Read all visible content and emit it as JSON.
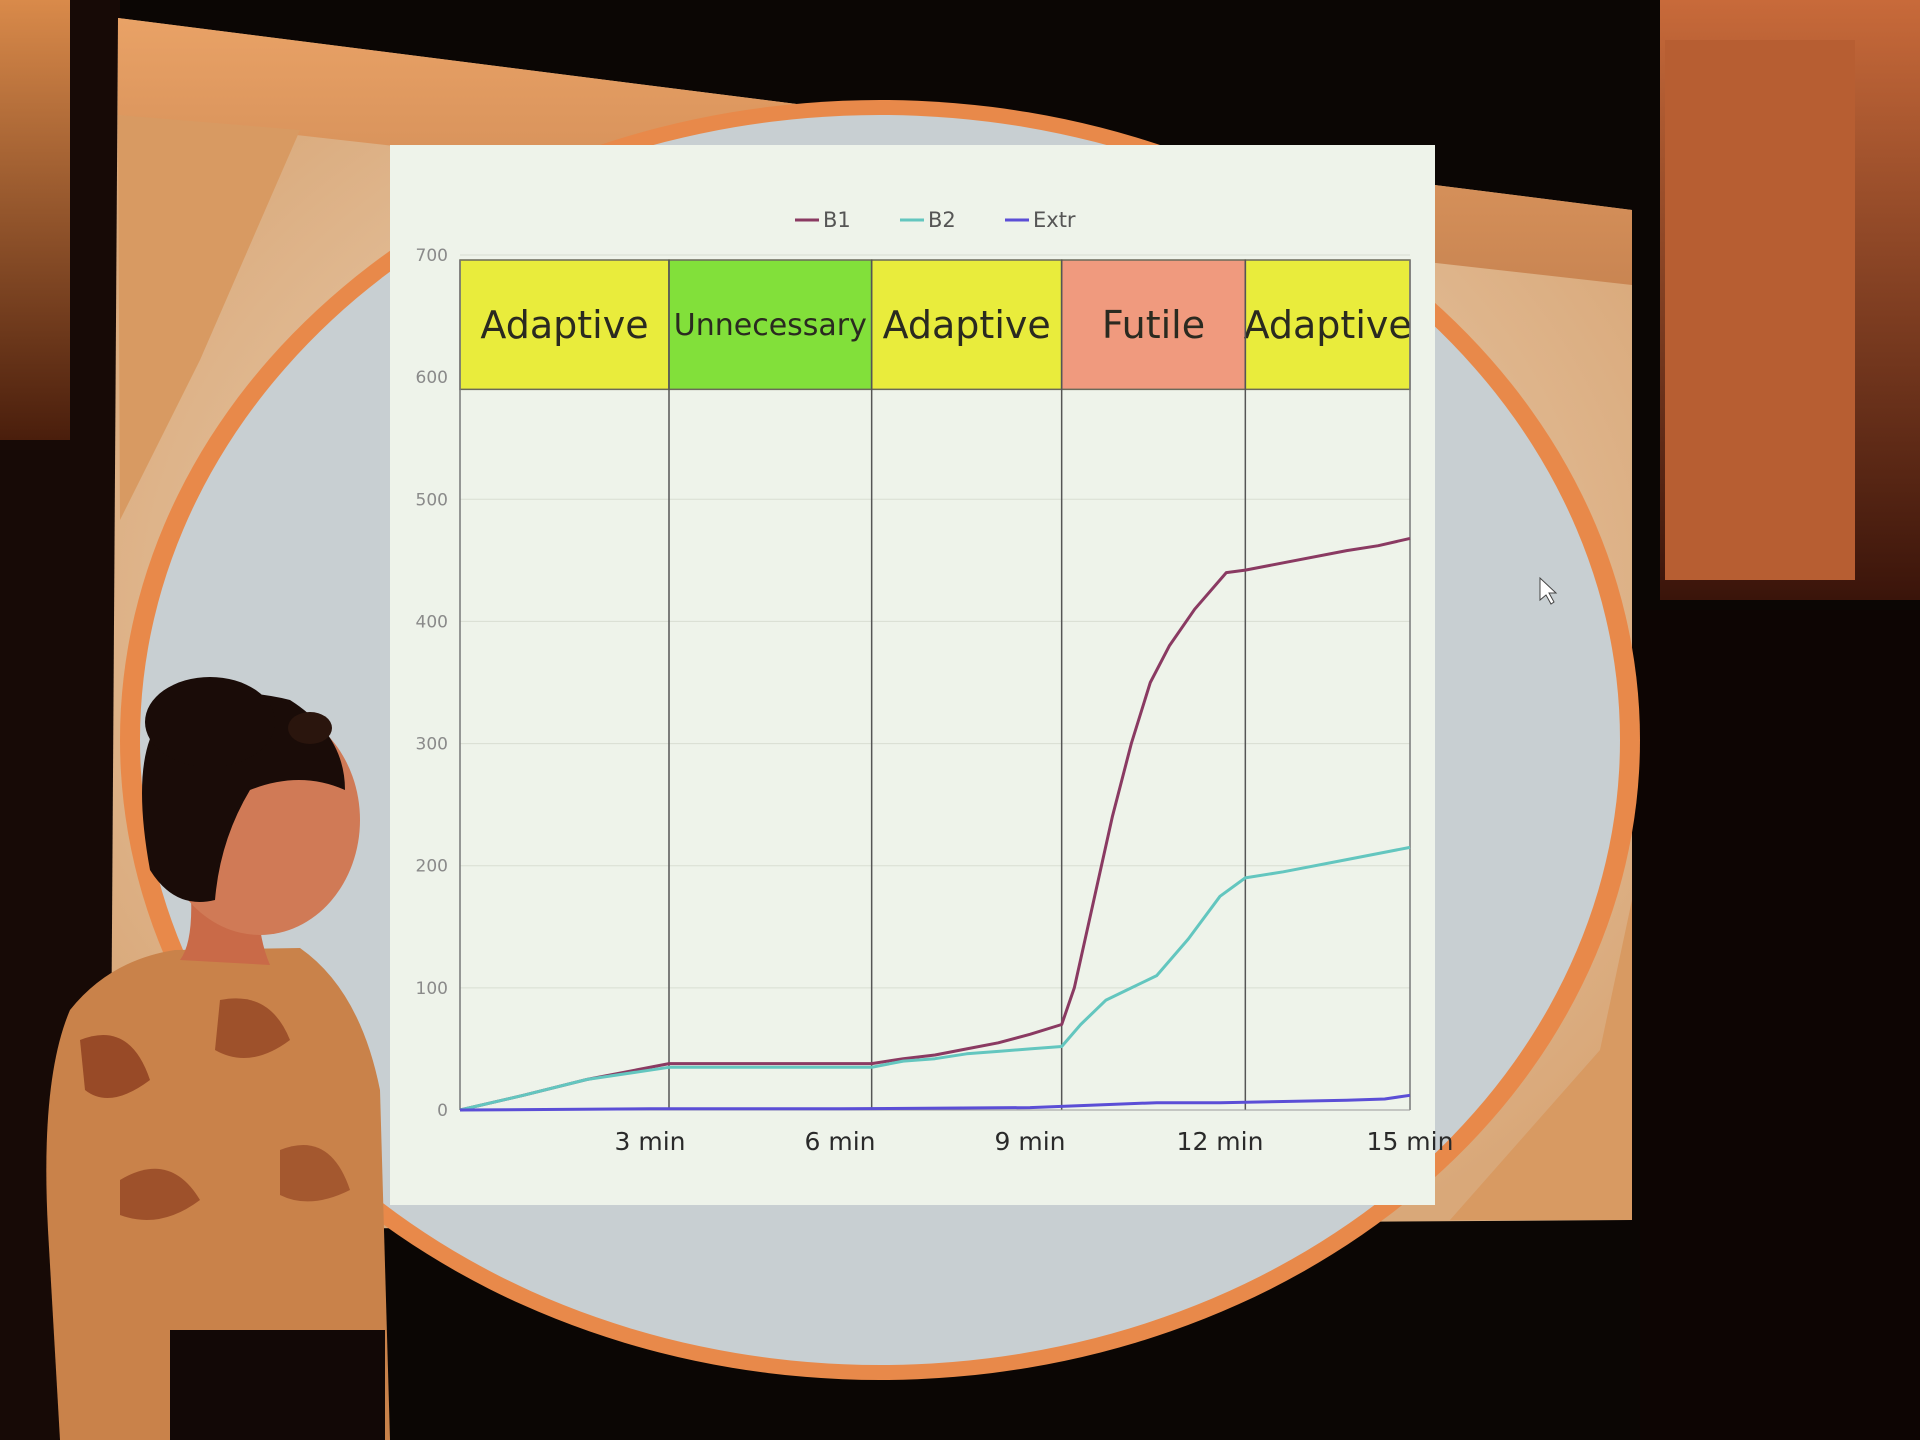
{
  "colors": {
    "adaptive": "#e9ec3c",
    "unnecessary": "#82e03a",
    "futile": "#f09a7e",
    "B1": "#8a3a62",
    "B2": "#63c6bf",
    "Extr": "#5b4ed6"
  },
  "chart_data": {
    "type": "line",
    "title": "",
    "xlabel": "",
    "ylabel": "",
    "xlim": [
      0,
      15
    ],
    "ylim": [
      0,
      700
    ],
    "x_ticks": [
      {
        "value": 3,
        "label": "3 min"
      },
      {
        "value": 6,
        "label": "6 min"
      },
      {
        "value": 9,
        "label": "9 min"
      },
      {
        "value": 12,
        "label": "12 min"
      },
      {
        "value": 15,
        "label": "15 min"
      }
    ],
    "y_ticks": [
      {
        "value": 0,
        "label": "0"
      },
      {
        "value": 100,
        "label": "100"
      },
      {
        "value": 200,
        "label": "200"
      },
      {
        "value": 300,
        "label": "300"
      },
      {
        "value": 400,
        "label": "400"
      },
      {
        "value": 500,
        "label": "500"
      },
      {
        "value": 600,
        "label": "600"
      },
      {
        "value": 700,
        "label": "700"
      }
    ],
    "grid": true,
    "legend_position": "top-center",
    "bands": [
      {
        "x0": 0,
        "x1": 3.3,
        "label": "Adaptive",
        "color_key": "adaptive"
      },
      {
        "x0": 3.3,
        "x1": 6.5,
        "label": "Unnecessary",
        "color_key": "unnecessary"
      },
      {
        "x0": 6.5,
        "x1": 9.5,
        "label": "Adaptive",
        "color_key": "adaptive"
      },
      {
        "x0": 9.5,
        "x1": 12.4,
        "label": "Futile",
        "color_key": "futile"
      },
      {
        "x0": 12.4,
        "x1": 15,
        "label": "Adaptive",
        "color_key": "adaptive"
      }
    ],
    "series": [
      {
        "name": "B1",
        "color_key": "B1",
        "points": [
          [
            0,
            0
          ],
          [
            1,
            12
          ],
          [
            2,
            25
          ],
          [
            3.3,
            38
          ],
          [
            4,
            38
          ],
          [
            5,
            38
          ],
          [
            6.5,
            38
          ],
          [
            7,
            42
          ],
          [
            7.5,
            45
          ],
          [
            8,
            50
          ],
          [
            8.5,
            55
          ],
          [
            9,
            62
          ],
          [
            9.5,
            70
          ],
          [
            9.7,
            100
          ],
          [
            10,
            170
          ],
          [
            10.3,
            240
          ],
          [
            10.6,
            300
          ],
          [
            10.9,
            350
          ],
          [
            11.2,
            380
          ],
          [
            11.6,
            410
          ],
          [
            12.1,
            440
          ],
          [
            12.4,
            442
          ],
          [
            13,
            448
          ],
          [
            14,
            458
          ],
          [
            14.5,
            462
          ],
          [
            15,
            468
          ]
        ]
      },
      {
        "name": "B2",
        "color_key": "B2",
        "points": [
          [
            0,
            0
          ],
          [
            1,
            12
          ],
          [
            2,
            25
          ],
          [
            3.3,
            35
          ],
          [
            4,
            35
          ],
          [
            5,
            35
          ],
          [
            6.5,
            35
          ],
          [
            7,
            40
          ],
          [
            7.5,
            42
          ],
          [
            8,
            46
          ],
          [
            8.5,
            48
          ],
          [
            9,
            50
          ],
          [
            9.5,
            52
          ],
          [
            9.8,
            70
          ],
          [
            10.2,
            90
          ],
          [
            10.6,
            100
          ],
          [
            11,
            110
          ],
          [
            11.5,
            140
          ],
          [
            12,
            175
          ],
          [
            12.4,
            190
          ],
          [
            13,
            195
          ],
          [
            14,
            205
          ],
          [
            15,
            215
          ]
        ]
      },
      {
        "name": "Extr",
        "color_key": "Extr",
        "points": [
          [
            0,
            0
          ],
          [
            3,
            1
          ],
          [
            6,
            1
          ],
          [
            9,
            2
          ],
          [
            10,
            4
          ],
          [
            11,
            6
          ],
          [
            12,
            6
          ],
          [
            13,
            7
          ],
          [
            14,
            8
          ],
          [
            14.6,
            9
          ],
          [
            15,
            12
          ]
        ]
      }
    ]
  }
}
